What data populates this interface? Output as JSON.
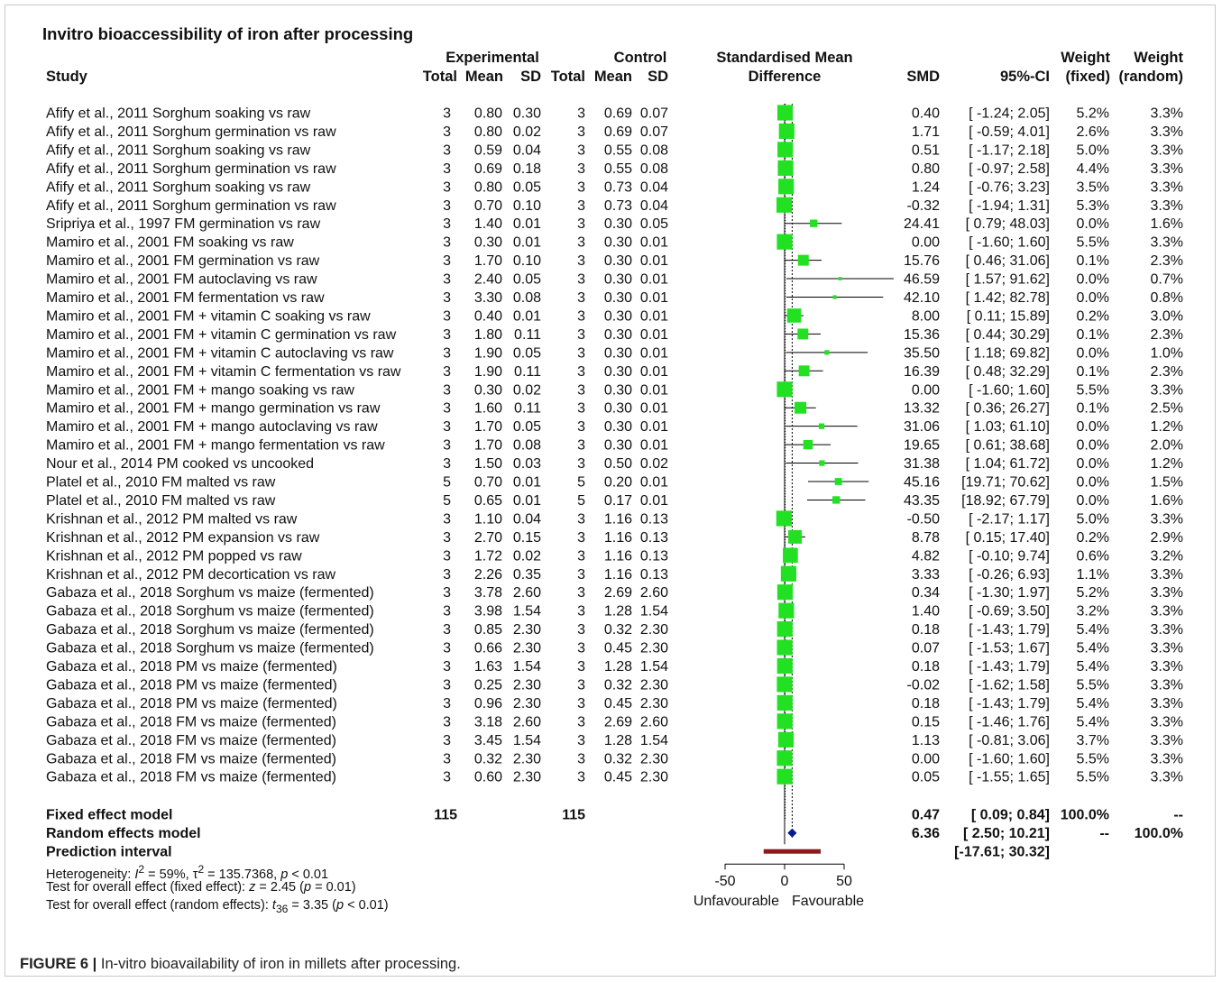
{
  "chart_data": {
    "type": "forest",
    "title": "Invitro bioaccessibility of iron after processing",
    "xlim": [
      -50,
      50
    ],
    "xticks": [
      "-50",
      "0",
      "50"
    ],
    "xlabel_left": "Unfavourable",
    "xlabel_right": "Favourable",
    "colors": {
      "square": "#22e022",
      "diamond": "#0a1a8c",
      "prediction": "#8b1a1a",
      "ci_line": "#000000"
    },
    "header": {
      "row1": {
        "experimental": "Experimental",
        "control": "Control",
        "smd_title": "Standardised Mean",
        "weight_fixed": "Weight",
        "weight_random": "Weight"
      },
      "row2": {
        "study": "Study",
        "total_e": "Total",
        "mean_e": "Mean",
        "sd_e": "SD",
        "total_c": "Total",
        "mean_c": "Mean",
        "sd_c": "SD",
        "smd_title": "Difference",
        "smd": "SMD",
        "ci": "95%-CI",
        "weight_fixed": "(fixed)",
        "weight_random": "(random)"
      }
    },
    "studies": [
      {
        "study": "Afify et al., 2011 Sorghum soaking vs raw",
        "total_e": "3",
        "mean_e": "0.80",
        "sd_e": "0.30",
        "total_c": "3",
        "mean_c": "0.69",
        "sd_c": "0.07",
        "smd": 0.4,
        "lower": -1.24,
        "upper": 2.05,
        "smd_text": "0.40",
        "ci_text": "[ -1.24;  2.05]",
        "w_fixed": "5.2%",
        "w_random": "3.3%"
      },
      {
        "study": "Afify et al., 2011 Sorghum germination vs raw",
        "total_e": "3",
        "mean_e": "0.80",
        "sd_e": "0.02",
        "total_c": "3",
        "mean_c": "0.69",
        "sd_c": "0.07",
        "smd": 1.71,
        "lower": -0.59,
        "upper": 4.01,
        "smd_text": "1.71",
        "ci_text": "[ -0.59;  4.01]",
        "w_fixed": "2.6%",
        "w_random": "3.3%"
      },
      {
        "study": "Afify et al., 2011 Sorghum soaking vs raw",
        "total_e": "3",
        "mean_e": "0.59",
        "sd_e": "0.04",
        "total_c": "3",
        "mean_c": "0.55",
        "sd_c": "0.08",
        "smd": 0.51,
        "lower": -1.17,
        "upper": 2.18,
        "smd_text": "0.51",
        "ci_text": "[ -1.17;  2.18]",
        "w_fixed": "5.0%",
        "w_random": "3.3%"
      },
      {
        "study": "Afify et al., 2011 Sorghum germination vs raw",
        "total_e": "3",
        "mean_e": "0.69",
        "sd_e": "0.18",
        "total_c": "3",
        "mean_c": "0.55",
        "sd_c": "0.08",
        "smd": 0.8,
        "lower": -0.97,
        "upper": 2.58,
        "smd_text": "0.80",
        "ci_text": "[ -0.97;  2.58]",
        "w_fixed": "4.4%",
        "w_random": "3.3%"
      },
      {
        "study": "Afify et al., 2011 Sorghum soaking vs raw",
        "total_e": "3",
        "mean_e": "0.80",
        "sd_e": "0.05",
        "total_c": "3",
        "mean_c": "0.73",
        "sd_c": "0.04",
        "smd": 1.24,
        "lower": -0.76,
        "upper": 3.23,
        "smd_text": "1.24",
        "ci_text": "[ -0.76;  3.23]",
        "w_fixed": "3.5%",
        "w_random": "3.3%"
      },
      {
        "study": "Afify et al., 2011 Sorghum germination vs raw",
        "total_e": "3",
        "mean_e": "0.70",
        "sd_e": "0.10",
        "total_c": "3",
        "mean_c": "0.73",
        "sd_c": "0.04",
        "smd": -0.32,
        "lower": -1.94,
        "upper": 1.31,
        "smd_text": "-0.32",
        "ci_text": "[ -1.94;  1.31]",
        "w_fixed": "5.3%",
        "w_random": "3.3%"
      },
      {
        "study": "Sripriya et al., 1997 FM germination vs raw",
        "total_e": "3",
        "mean_e": "1.40",
        "sd_e": "0.01",
        "total_c": "3",
        "mean_c": "0.30",
        "sd_c": "0.05",
        "smd": 24.41,
        "lower": 0.79,
        "upper": 48.03,
        "smd_text": "24.41",
        "ci_text": "[  0.79; 48.03]",
        "w_fixed": "0.0%",
        "w_random": "1.6%"
      },
      {
        "study": "Mamiro et al., 2001 FM soaking vs raw",
        "total_e": "3",
        "mean_e": "0.30",
        "sd_e": "0.01",
        "total_c": "3",
        "mean_c": "0.30",
        "sd_c": "0.01",
        "smd": 0.0,
        "lower": -1.6,
        "upper": 1.6,
        "smd_text": "0.00",
        "ci_text": "[ -1.60;  1.60]",
        "w_fixed": "5.5%",
        "w_random": "3.3%"
      },
      {
        "study": "Mamiro et al., 2001 FM germination vs raw",
        "total_e": "3",
        "mean_e": "1.70",
        "sd_e": "0.10",
        "total_c": "3",
        "mean_c": "0.30",
        "sd_c": "0.01",
        "smd": 15.76,
        "lower": 0.46,
        "upper": 31.06,
        "smd_text": "15.76",
        "ci_text": "[  0.46; 31.06]",
        "w_fixed": "0.1%",
        "w_random": "2.3%"
      },
      {
        "study": "Mamiro et al., 2001 FM autoclaving vs raw",
        "total_e": "3",
        "mean_e": "2.40",
        "sd_e": "0.05",
        "total_c": "3",
        "mean_c": "0.30",
        "sd_c": "0.01",
        "smd": 46.59,
        "lower": 1.57,
        "upper": 91.62,
        "smd_text": "46.59",
        "ci_text": "[  1.57; 91.62]",
        "w_fixed": "0.0%",
        "w_random": "0.7%"
      },
      {
        "study": "Mamiro et al., 2001 FM fermentation vs raw",
        "total_e": "3",
        "mean_e": "3.30",
        "sd_e": "0.08",
        "total_c": "3",
        "mean_c": "0.30",
        "sd_c": "0.01",
        "smd": 42.1,
        "lower": 1.42,
        "upper": 82.78,
        "smd_text": "42.10",
        "ci_text": "[  1.42; 82.78]",
        "w_fixed": "0.0%",
        "w_random": "0.8%"
      },
      {
        "study": "Mamiro et al., 2001 FM + vitamin C soaking vs raw",
        "total_e": "3",
        "mean_e": "0.40",
        "sd_e": "0.01",
        "total_c": "3",
        "mean_c": "0.30",
        "sd_c": "0.01",
        "smd": 8.0,
        "lower": 0.11,
        "upper": 15.89,
        "smd_text": "8.00",
        "ci_text": "[  0.11; 15.89]",
        "w_fixed": "0.2%",
        "w_random": "3.0%"
      },
      {
        "study": "Mamiro et al., 2001 FM + vitamin C germination vs raw",
        "total_e": "3",
        "mean_e": "1.80",
        "sd_e": "0.11",
        "total_c": "3",
        "mean_c": "0.30",
        "sd_c": "0.01",
        "smd": 15.36,
        "lower": 0.44,
        "upper": 30.29,
        "smd_text": "15.36",
        "ci_text": "[  0.44; 30.29]",
        "w_fixed": "0.1%",
        "w_random": "2.3%"
      },
      {
        "study": "Mamiro et al., 2001 FM + vitamin C autoclaving vs raw",
        "total_e": "3",
        "mean_e": "1.90",
        "sd_e": "0.05",
        "total_c": "3",
        "mean_c": "0.30",
        "sd_c": "0.01",
        "smd": 35.5,
        "lower": 1.18,
        "upper": 69.82,
        "smd_text": "35.50",
        "ci_text": "[  1.18; 69.82]",
        "w_fixed": "0.0%",
        "w_random": "1.0%"
      },
      {
        "study": "Mamiro et al., 2001 FM + vitamin C fermentation vs raw",
        "total_e": "3",
        "mean_e": "1.90",
        "sd_e": "0.11",
        "total_c": "3",
        "mean_c": "0.30",
        "sd_c": "0.01",
        "smd": 16.39,
        "lower": 0.48,
        "upper": 32.29,
        "smd_text": "16.39",
        "ci_text": "[  0.48; 32.29]",
        "w_fixed": "0.1%",
        "w_random": "2.3%"
      },
      {
        "study": "Mamiro et al., 2001 FM + mango soaking vs raw",
        "total_e": "3",
        "mean_e": "0.30",
        "sd_e": "0.02",
        "total_c": "3",
        "mean_c": "0.30",
        "sd_c": "0.01",
        "smd": 0.0,
        "lower": -1.6,
        "upper": 1.6,
        "smd_text": "0.00",
        "ci_text": "[ -1.60;  1.60]",
        "w_fixed": "5.5%",
        "w_random": "3.3%"
      },
      {
        "study": "Mamiro et al., 2001 FM + mango germination vs raw",
        "total_e": "3",
        "mean_e": "1.60",
        "sd_e": "0.11",
        "total_c": "3",
        "mean_c": "0.30",
        "sd_c": "0.01",
        "smd": 13.32,
        "lower": 0.36,
        "upper": 26.27,
        "smd_text": "13.32",
        "ci_text": "[  0.36; 26.27]",
        "w_fixed": "0.1%",
        "w_random": "2.5%"
      },
      {
        "study": "Mamiro et al., 2001 FM + mango autoclaving vs raw",
        "total_e": "3",
        "mean_e": "1.70",
        "sd_e": "0.05",
        "total_c": "3",
        "mean_c": "0.30",
        "sd_c": "0.01",
        "smd": 31.06,
        "lower": 1.03,
        "upper": 61.1,
        "smd_text": "31.06",
        "ci_text": "[  1.03; 61.10]",
        "w_fixed": "0.0%",
        "w_random": "1.2%"
      },
      {
        "study": "Mamiro et al., 2001 FM + mango fermentation vs raw",
        "total_e": "3",
        "mean_e": "1.70",
        "sd_e": "0.08",
        "total_c": "3",
        "mean_c": "0.30",
        "sd_c": "0.01",
        "smd": 19.65,
        "lower": 0.61,
        "upper": 38.68,
        "smd_text": "19.65",
        "ci_text": "[  0.61; 38.68]",
        "w_fixed": "0.0%",
        "w_random": "2.0%"
      },
      {
        "study": "Nour et al., 2014 PM cooked vs uncooked",
        "total_e": "3",
        "mean_e": "1.50",
        "sd_e": "0.03",
        "total_c": "3",
        "mean_c": "0.50",
        "sd_c": "0.02",
        "smd": 31.38,
        "lower": 1.04,
        "upper": 61.72,
        "smd_text": "31.38",
        "ci_text": "[  1.04; 61.72]",
        "w_fixed": "0.0%",
        "w_random": "1.2%"
      },
      {
        "study": "Platel et al., 2010 FM malted vs raw",
        "total_e": "5",
        "mean_e": "0.70",
        "sd_e": "0.01",
        "total_c": "5",
        "mean_c": "0.20",
        "sd_c": "0.01",
        "smd": 45.16,
        "lower": 19.71,
        "upper": 70.62,
        "smd_text": "45.16",
        "ci_text": "[19.71; 70.62]",
        "w_fixed": "0.0%",
        "w_random": "1.5%"
      },
      {
        "study": "Platel et al., 2010 FM malted vs raw",
        "total_e": "5",
        "mean_e": "0.65",
        "sd_e": "0.01",
        "total_c": "5",
        "mean_c": "0.17",
        "sd_c": "0.01",
        "smd": 43.35,
        "lower": 18.92,
        "upper": 67.79,
        "smd_text": "43.35",
        "ci_text": "[18.92; 67.79]",
        "w_fixed": "0.0%",
        "w_random": "1.6%"
      },
      {
        "study": "Krishnan et al., 2012 PM malted vs raw",
        "total_e": "3",
        "mean_e": "1.10",
        "sd_e": "0.04",
        "total_c": "3",
        "mean_c": "1.16",
        "sd_c": "0.13",
        "smd": -0.5,
        "lower": -2.17,
        "upper": 1.17,
        "smd_text": "-0.50",
        "ci_text": "[ -2.17;  1.17]",
        "w_fixed": "5.0%",
        "w_random": "3.3%"
      },
      {
        "study": "Krishnan et al., 2012 PM expansion vs raw",
        "total_e": "3",
        "mean_e": "2.70",
        "sd_e": "0.15",
        "total_c": "3",
        "mean_c": "1.16",
        "sd_c": "0.13",
        "smd": 8.78,
        "lower": 0.15,
        "upper": 17.4,
        "smd_text": "8.78",
        "ci_text": "[  0.15; 17.40]",
        "w_fixed": "0.2%",
        "w_random": "2.9%"
      },
      {
        "study": "Krishnan et al., 2012 PM popped vs raw",
        "total_e": "3",
        "mean_e": "1.72",
        "sd_e": "0.02",
        "total_c": "3",
        "mean_c": "1.16",
        "sd_c": "0.13",
        "smd": 4.82,
        "lower": -0.1,
        "upper": 9.74,
        "smd_text": "4.82",
        "ci_text": "[ -0.10;  9.74]",
        "w_fixed": "0.6%",
        "w_random": "3.2%"
      },
      {
        "study": "Krishnan et al., 2012 PM decortication vs raw",
        "total_e": "3",
        "mean_e": "2.26",
        "sd_e": "0.35",
        "total_c": "3",
        "mean_c": "1.16",
        "sd_c": "0.13",
        "smd": 3.33,
        "lower": -0.26,
        "upper": 6.93,
        "smd_text": "3.33",
        "ci_text": "[ -0.26;  6.93]",
        "w_fixed": "1.1%",
        "w_random": "3.3%"
      },
      {
        "study": "Gabaza et al., 2018 Sorghum vs maize (fermented)",
        "total_e": "3",
        "mean_e": "3.78",
        "sd_e": "2.60",
        "total_c": "3",
        "mean_c": "2.69",
        "sd_c": "2.60",
        "smd": 0.34,
        "lower": -1.3,
        "upper": 1.97,
        "smd_text": "0.34",
        "ci_text": "[ -1.30;  1.97]",
        "w_fixed": "5.2%",
        "w_random": "3.3%"
      },
      {
        "study": "Gabaza et al., 2018 Sorghum vs maize (fermented)",
        "total_e": "3",
        "mean_e": "3.98",
        "sd_e": "1.54",
        "total_c": "3",
        "mean_c": "1.28",
        "sd_c": "1.54",
        "smd": 1.4,
        "lower": -0.69,
        "upper": 3.5,
        "smd_text": "1.40",
        "ci_text": "[ -0.69;  3.50]",
        "w_fixed": "3.2%",
        "w_random": "3.3%"
      },
      {
        "study": "Gabaza et al., 2018 Sorghum vs maize (fermented)",
        "total_e": "3",
        "mean_e": "0.85",
        "sd_e": "2.30",
        "total_c": "3",
        "mean_c": "0.32",
        "sd_c": "2.30",
        "smd": 0.18,
        "lower": -1.43,
        "upper": 1.79,
        "smd_text": "0.18",
        "ci_text": "[ -1.43;  1.79]",
        "w_fixed": "5.4%",
        "w_random": "3.3%"
      },
      {
        "study": "Gabaza et al., 2018 Sorghum vs maize (fermented)",
        "total_e": "3",
        "mean_e": "0.66",
        "sd_e": "2.30",
        "total_c": "3",
        "mean_c": "0.45",
        "sd_c": "2.30",
        "smd": 0.07,
        "lower": -1.53,
        "upper": 1.67,
        "smd_text": "0.07",
        "ci_text": "[ -1.53;  1.67]",
        "w_fixed": "5.4%",
        "w_random": "3.3%"
      },
      {
        "study": "Gabaza et al., 2018 PM vs maize (fermented)",
        "total_e": "3",
        "mean_e": "1.63",
        "sd_e": "1.54",
        "total_c": "3",
        "mean_c": "1.28",
        "sd_c": "1.54",
        "smd": 0.18,
        "lower": -1.43,
        "upper": 1.79,
        "smd_text": "0.18",
        "ci_text": "[ -1.43;  1.79]",
        "w_fixed": "5.4%",
        "w_random": "3.3%"
      },
      {
        "study": "Gabaza et al., 2018 PM vs maize (fermented)",
        "total_e": "3",
        "mean_e": "0.25",
        "sd_e": "2.30",
        "total_c": "3",
        "mean_c": "0.32",
        "sd_c": "2.30",
        "smd": -0.02,
        "lower": -1.62,
        "upper": 1.58,
        "smd_text": "-0.02",
        "ci_text": "[ -1.62;  1.58]",
        "w_fixed": "5.5%",
        "w_random": "3.3%"
      },
      {
        "study": "Gabaza et al., 2018 PM vs maize (fermented)",
        "total_e": "3",
        "mean_e": "0.96",
        "sd_e": "2.30",
        "total_c": "3",
        "mean_c": "0.45",
        "sd_c": "2.30",
        "smd": 0.18,
        "lower": -1.43,
        "upper": 1.79,
        "smd_text": "0.18",
        "ci_text": "[ -1.43;  1.79]",
        "w_fixed": "5.4%",
        "w_random": "3.3%"
      },
      {
        "study": "Gabaza et al., 2018 FM vs maize (fermented)",
        "total_e": "3",
        "mean_e": "3.18",
        "sd_e": "2.60",
        "total_c": "3",
        "mean_c": "2.69",
        "sd_c": "2.60",
        "smd": 0.15,
        "lower": -1.46,
        "upper": 1.76,
        "smd_text": "0.15",
        "ci_text": "[ -1.46;  1.76]",
        "w_fixed": "5.4%",
        "w_random": "3.3%"
      },
      {
        "study": "Gabaza et al., 2018 FM vs maize (fermented)",
        "total_e": "3",
        "mean_e": "3.45",
        "sd_e": "1.54",
        "total_c": "3",
        "mean_c": "1.28",
        "sd_c": "1.54",
        "smd": 1.13,
        "lower": -0.81,
        "upper": 3.06,
        "smd_text": "1.13",
        "ci_text": "[ -0.81;  3.06]",
        "w_fixed": "3.7%",
        "w_random": "3.3%"
      },
      {
        "study": "Gabaza et al., 2018 FM vs maize (fermented)",
        "total_e": "3",
        "mean_e": "0.32",
        "sd_e": "2.30",
        "total_c": "3",
        "mean_c": "0.32",
        "sd_c": "2.30",
        "smd": 0.0,
        "lower": -1.6,
        "upper": 1.6,
        "smd_text": "0.00",
        "ci_text": "[ -1.60;  1.60]",
        "w_fixed": "5.5%",
        "w_random": "3.3%"
      },
      {
        "study": "Gabaza et al., 2018 FM vs maize (fermented)",
        "total_e": "3",
        "mean_e": "0.60",
        "sd_e": "2.30",
        "total_c": "3",
        "mean_c": "0.45",
        "sd_c": "2.30",
        "smd": 0.05,
        "lower": -1.55,
        "upper": 1.65,
        "smd_text": "0.05",
        "ci_text": "[ -1.55;  1.65]",
        "w_fixed": "5.5%",
        "w_random": "3.3%"
      }
    ],
    "summary": {
      "fixed": {
        "label": "Fixed effect model",
        "total_e": "115",
        "total_c": "115",
        "smd": 0.47,
        "lower": 0.09,
        "upper": 0.84,
        "smd_text": "0.47",
        "ci_text": "[  0.09;  0.84]",
        "w_fixed": "100.0%",
        "w_random": "--"
      },
      "random": {
        "label": "Random effects model",
        "smd": 6.36,
        "lower": 2.5,
        "upper": 10.21,
        "smd_text": "6.36",
        "ci_text": "[  2.50; 10.21]",
        "w_fixed": "--",
        "w_random": "100.0%"
      },
      "prediction": {
        "label": "Prediction interval",
        "lower": -17.61,
        "upper": 30.32,
        "ci_text": "[-17.61; 30.32]"
      }
    },
    "stats": {
      "heterogeneity": {
        "prefix": "Heterogeneity: ",
        "i2_sym": "I",
        "i2_val": " = 59%, ",
        "tau_sym": "τ",
        "tau_val": " = 135.7368, ",
        "p_sym": "p",
        "p_val": " < 0.01"
      },
      "fixed_test": {
        "prefix": "Test for overall effect (fixed effect): ",
        "z_sym": "z",
        "z_val": " = 2.45 (",
        "p_sym": "p",
        "p_val": " = 0.01)"
      },
      "random_test": {
        "prefix": "Test for overall effect (random effects): ",
        "t_sym": "t",
        "t_sub": "36",
        "t_val": " = 3.35 (",
        "p_sym": "p",
        "p_val": " < 0.01)"
      }
    }
  },
  "caption": {
    "figure_label": "FIGURE 6 |",
    "text": " In-vitro bioavailability of iron in millets after processing."
  }
}
